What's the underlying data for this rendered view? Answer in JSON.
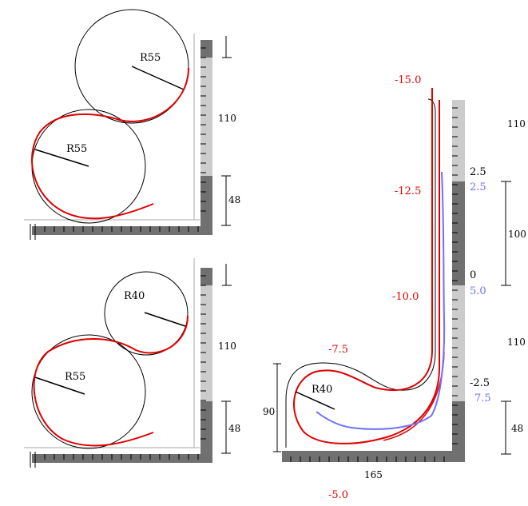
{
  "colors": {
    "track_red": "#e00000",
    "track_blue": "#7070ff",
    "ruler_dark": "#707070",
    "ruler_light": "#cccccc",
    "ink": "#000000"
  },
  "panel_top_left": {
    "circle_upper": "R55",
    "circle_lower": "R55",
    "dim_upper": "110",
    "dim_lower": "48"
  },
  "panel_bottom_left": {
    "circle_upper": "R40",
    "circle_lower": "R55",
    "dim_upper": "110",
    "dim_lower": "48"
  },
  "panel_right": {
    "radius_label": "R40",
    "height_label": "90",
    "width_label": "165",
    "black_values": [
      "2.5",
      "0",
      "-2.5"
    ],
    "blue_values": [
      "2.5",
      "5.0",
      "7.5"
    ],
    "red_values": [
      "-15.0",
      "-12.5",
      "-10.0",
      "-7.5",
      "-5.0"
    ],
    "dims": [
      "110",
      "100",
      "110",
      "48"
    ]
  }
}
